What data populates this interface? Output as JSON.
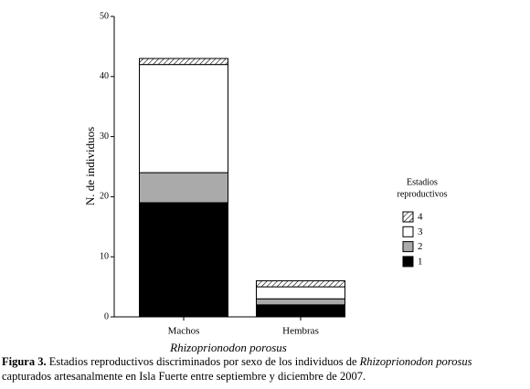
{
  "chart_data": {
    "type": "stacked_bar",
    "categories": [
      "Machos",
      "Hembras"
    ],
    "series": [
      {
        "name": "1",
        "color": "#000000",
        "values": [
          19,
          2
        ]
      },
      {
        "name": "2",
        "color": "#aaaaaa",
        "values": [
          5,
          1
        ]
      },
      {
        "name": "3",
        "color": "#ffffff",
        "values": [
          18,
          2
        ]
      },
      {
        "name": "4",
        "color": "#ffffff",
        "pattern": "hatch",
        "values": [
          1,
          1
        ]
      }
    ],
    "ylim": [
      0,
      50
    ],
    "yticks": [
      0,
      10,
      20,
      30,
      40,
      50
    ],
    "ylabel": "N. de individuos",
    "xlabel": "Rhizoprionodon porosus",
    "legend_title": [
      "Estadios",
      "reproductivos"
    ],
    "legend": "right"
  },
  "caption": {
    "label": "Figura 3.",
    "parts": [
      " Estadios reproductivos discriminados por sexo de los individuos de ",
      "Rhizoprionodon porosus",
      "capturados artesanalmente en Isla Fuerte entre septiembre y diciembre de 2007."
    ]
  }
}
